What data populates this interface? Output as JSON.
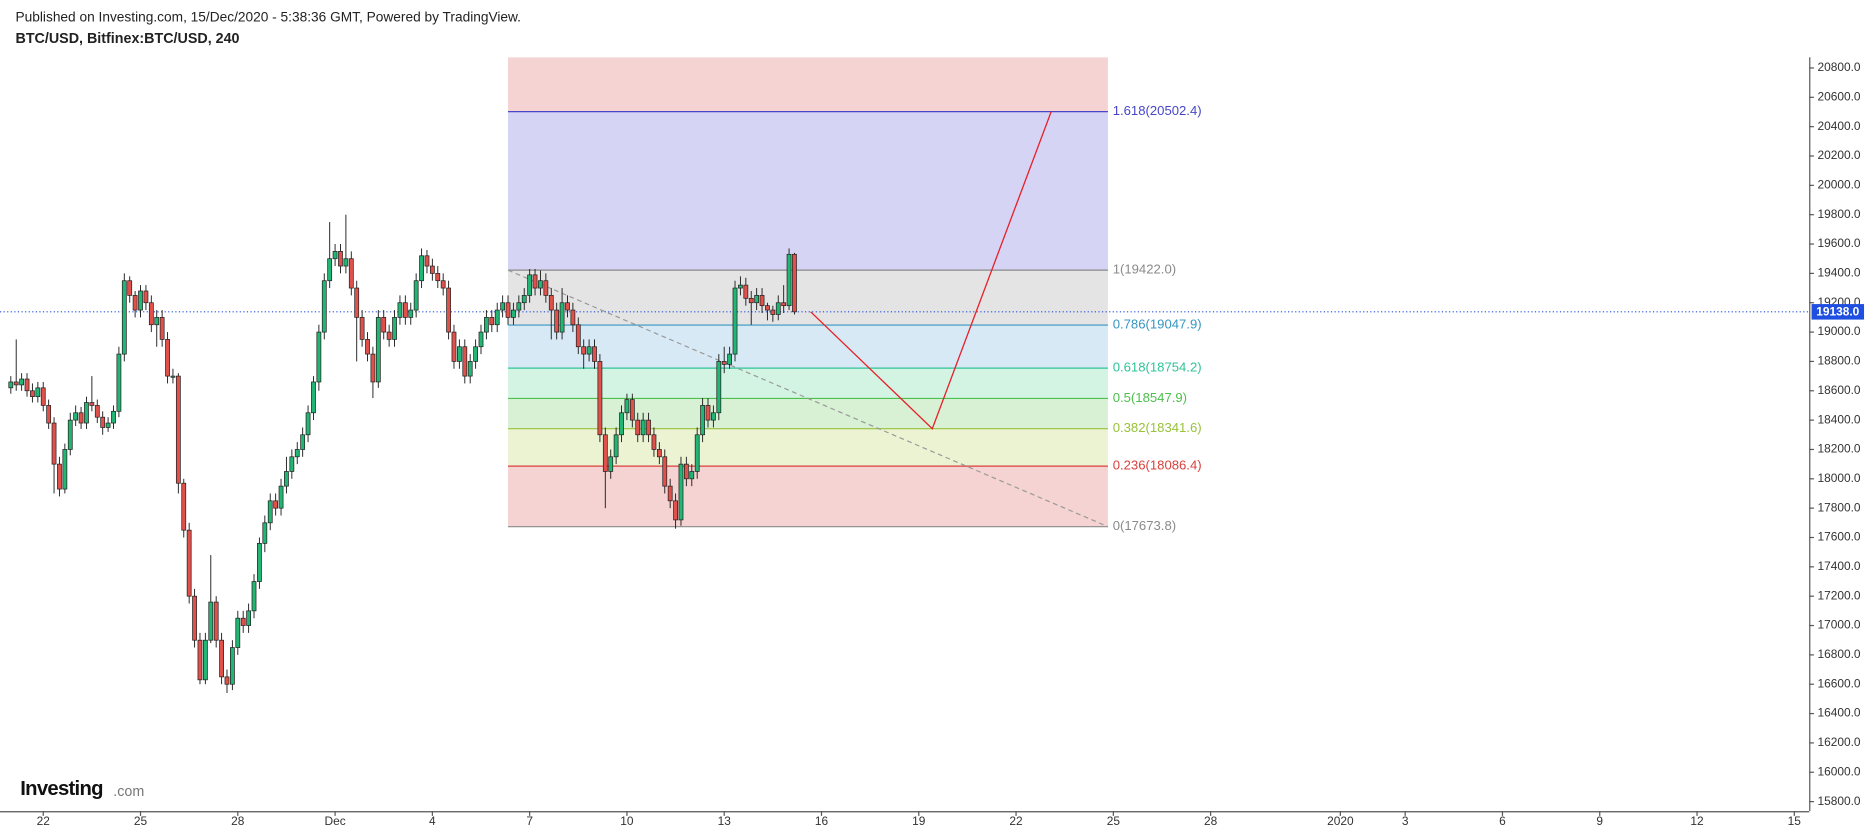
{
  "header": {
    "published": "Published on Investing.com, 15/Dec/2020 - 5:38:36 GMT, Powered by TradingView.",
    "symbol": "BTC/USD, Bitfinex:BTC/USD, 240"
  },
  "logo": {
    "brand": "Investing",
    "suffix": ".com"
  },
  "chart_data": {
    "type": "candlestick",
    "x": [
      "2020-11-21T00:00",
      "2020-11-21T04:00",
      "2020-11-21T08:00",
      "2020-11-21T12:00",
      "2020-11-21T16:00",
      "2020-11-21T20:00",
      "2020-11-22T00:00",
      "2020-11-22T04:00",
      "2020-11-22T08:00",
      "2020-11-22T12:00",
      "2020-11-22T16:00",
      "2020-11-22T20:00",
      "2020-11-23T00:00",
      "2020-11-23T04:00",
      "2020-11-23T08:00",
      "2020-11-23T12:00",
      "2020-11-23T16:00",
      "2020-11-23T20:00",
      "2020-11-24T00:00",
      "2020-11-24T04:00",
      "2020-11-24T08:00",
      "2020-11-24T12:00",
      "2020-11-24T16:00",
      "2020-11-24T20:00",
      "2020-11-25T00:00",
      "2020-11-25T04:00",
      "2020-11-25T08:00",
      "2020-11-25T12:00",
      "2020-11-25T16:00",
      "2020-11-25T20:00",
      "2020-11-26T00:00",
      "2020-11-26T04:00",
      "2020-11-26T08:00",
      "2020-11-26T12:00",
      "2020-11-26T16:00",
      "2020-11-26T20:00",
      "2020-11-27T00:00",
      "2020-11-27T04:00",
      "2020-11-27T08:00",
      "2020-11-27T12:00",
      "2020-11-27T16:00",
      "2020-11-27T20:00",
      "2020-11-28T00:00",
      "2020-11-28T04:00",
      "2020-11-28T08:00",
      "2020-11-28T12:00",
      "2020-11-28T16:00",
      "2020-11-28T20:00",
      "2020-11-29T00:00",
      "2020-11-29T04:00",
      "2020-11-29T08:00",
      "2020-11-29T12:00",
      "2020-11-29T16:00",
      "2020-11-29T20:00",
      "2020-11-30T00:00",
      "2020-11-30T04:00",
      "2020-11-30T08:00",
      "2020-11-30T12:00",
      "2020-11-30T16:00",
      "2020-11-30T20:00",
      "2020-12-01T00:00",
      "2020-12-01T04:00",
      "2020-12-01T08:00",
      "2020-12-01T12:00",
      "2020-12-01T16:00",
      "2020-12-01T20:00",
      "2020-12-02T00:00",
      "2020-12-02T04:00",
      "2020-12-02T08:00",
      "2020-12-02T12:00",
      "2020-12-02T16:00",
      "2020-12-02T20:00",
      "2020-12-03T00:00",
      "2020-12-03T04:00",
      "2020-12-03T08:00",
      "2020-12-03T12:00",
      "2020-12-03T16:00",
      "2020-12-03T20:00",
      "2020-12-04T00:00",
      "2020-12-04T04:00",
      "2020-12-04T08:00",
      "2020-12-04T12:00",
      "2020-12-04T16:00",
      "2020-12-04T20:00",
      "2020-12-05T00:00",
      "2020-12-05T04:00",
      "2020-12-05T08:00",
      "2020-12-05T12:00",
      "2020-12-05T16:00",
      "2020-12-05T20:00",
      "2020-12-06T00:00",
      "2020-12-06T04:00",
      "2020-12-06T08:00",
      "2020-12-06T12:00",
      "2020-12-06T16:00",
      "2020-12-06T20:00",
      "2020-12-07T00:00",
      "2020-12-07T04:00",
      "2020-12-07T08:00",
      "2020-12-07T12:00",
      "2020-12-07T16:00",
      "2020-12-07T20:00",
      "2020-12-08T00:00",
      "2020-12-08T04:00",
      "2020-12-08T08:00",
      "2020-12-08T12:00",
      "2020-12-08T16:00",
      "2020-12-08T20:00",
      "2020-12-09T00:00",
      "2020-12-09T04:00",
      "2020-12-09T08:00",
      "2020-12-09T12:00",
      "2020-12-09T16:00",
      "2020-12-09T20:00",
      "2020-12-10T00:00",
      "2020-12-10T04:00",
      "2020-12-10T08:00",
      "2020-12-10T12:00",
      "2020-12-10T16:00",
      "2020-12-10T20:00",
      "2020-12-11T00:00",
      "2020-12-11T04:00",
      "2020-12-11T08:00",
      "2020-12-11T12:00",
      "2020-12-11T16:00",
      "2020-12-11T20:00",
      "2020-12-12T00:00",
      "2020-12-12T04:00",
      "2020-12-12T08:00",
      "2020-12-12T12:00",
      "2020-12-12T16:00",
      "2020-12-12T20:00",
      "2020-12-13T00:00",
      "2020-12-13T04:00",
      "2020-12-13T08:00",
      "2020-12-13T12:00",
      "2020-12-13T16:00",
      "2020-12-13T20:00",
      "2020-12-14T00:00",
      "2020-12-14T04:00",
      "2020-12-14T08:00",
      "2020-12-14T12:00",
      "2020-12-14T16:00",
      "2020-12-14T20:00",
      "2020-12-15T00:00",
      "2020-12-15T04:00"
    ],
    "open": [
      18620,
      18660,
      18640,
      18680,
      18600,
      18560,
      18620,
      18500,
      18380,
      18100,
      17930,
      18200,
      18400,
      18450,
      18380,
      18520,
      18500,
      18420,
      18350,
      18380,
      18460,
      18850,
      19350,
      19250,
      19150,
      19280,
      19200,
      19050,
      19100,
      18950,
      18700,
      18700,
      17970,
      17650,
      17200,
      16900,
      16630,
      16900,
      17160,
      16900,
      16650,
      16600,
      16850,
      17050,
      17000,
      17100,
      17300,
      17560,
      17700,
      17850,
      17800,
      17950,
      18050,
      18150,
      18200,
      18300,
      18450,
      18660,
      19000,
      19350,
      19500,
      19550,
      19450,
      19500,
      19300,
      19100,
      18950,
      18850,
      18660,
      19100,
      19000,
      18950,
      19100,
      19200,
      19100,
      19150,
      19350,
      19520,
      19450,
      19400,
      19350,
      19300,
      19000,
      18800,
      18900,
      18700,
      18800,
      18900,
      19000,
      19100,
      19050,
      19150,
      19200,
      19100,
      19150,
      19200,
      19250,
      19390,
      19300,
      19350,
      19250,
      19150,
      19000,
      19200,
      19150,
      19050,
      18900,
      18850,
      18900,
      18800,
      18300,
      18050,
      18150,
      18300,
      18450,
      18540,
      18400,
      18300,
      18400,
      18300,
      18200,
      18150,
      17950,
      17850,
      17720,
      18100,
      18000,
      18050,
      18300,
      18500,
      18400,
      18450,
      18800,
      18780,
      18850,
      19300,
      19320,
      19230,
      19200,
      19250,
      19180,
      19150,
      19120,
      19200,
      19180,
      19530
    ],
    "high": [
      18700,
      18950,
      18720,
      18720,
      18650,
      18660,
      18660,
      18540,
      18420,
      18150,
      18240,
      18450,
      18500,
      18490,
      18560,
      18700,
      18540,
      18460,
      18420,
      18500,
      18900,
      19400,
      19380,
      19280,
      19320,
      19320,
      19250,
      19150,
      19150,
      19000,
      18750,
      18720,
      18000,
      17700,
      17250,
      16950,
      16950,
      17480,
      17200,
      16950,
      16700,
      16900,
      17100,
      17100,
      17150,
      17350,
      17600,
      17750,
      17900,
      17900,
      18000,
      18150,
      18200,
      18250,
      18350,
      18500,
      18700,
      19050,
      19400,
      19750,
      19600,
      19600,
      19800,
      19550,
      19350,
      19150,
      19000,
      18900,
      19150,
      19150,
      19050,
      19150,
      19250,
      19250,
      19200,
      19400,
      19570,
      19560,
      19500,
      19450,
      19400,
      19350,
      19050,
      18950,
      18950,
      18850,
      18950,
      19050,
      19150,
      19150,
      19200,
      19250,
      19250,
      19200,
      19250,
      19300,
      19430,
      19430,
      19420,
      19400,
      19300,
      19200,
      19300,
      19250,
      19200,
      19100,
      18950,
      18950,
      18950,
      18850,
      18350,
      18200,
      18350,
      18500,
      18580,
      18580,
      18450,
      18450,
      18450,
      18350,
      18250,
      18200,
      18000,
      17900,
      18150,
      18150,
      18100,
      18350,
      18550,
      18550,
      18500,
      18850,
      18900,
      18900,
      19350,
      19380,
      19370,
      19280,
      19300,
      19300,
      19200,
      19180,
      19250,
      19320,
      19570,
      19540
    ],
    "low": [
      18580,
      18600,
      18600,
      18560,
      18520,
      18520,
      18460,
      18340,
      17900,
      17880,
      17900,
      18160,
      18360,
      18340,
      18340,
      18460,
      18380,
      18300,
      18320,
      18340,
      18420,
      18800,
      19200,
      19100,
      19100,
      19150,
      19000,
      18900,
      18900,
      18650,
      18650,
      17900,
      17600,
      17150,
      16850,
      16600,
      16600,
      16880,
      16850,
      16600,
      16540,
      16560,
      16800,
      16950,
      16950,
      17050,
      17250,
      17500,
      17650,
      17750,
      17750,
      17900,
      18000,
      18100,
      18150,
      18250,
      18400,
      18600,
      18950,
      19300,
      19450,
      19400,
      19400,
      19250,
      18800,
      18900,
      18800,
      18550,
      18620,
      18950,
      18900,
      18900,
      19050,
      19050,
      19050,
      19100,
      19300,
      19400,
      19350,
      19300,
      19250,
      18950,
      18750,
      18750,
      18650,
      18650,
      18750,
      18850,
      18950,
      19000,
      19000,
      19100,
      19050,
      19050,
      19100,
      19150,
      19200,
      19250,
      19250,
      19200,
      18950,
      18950,
      18950,
      19100,
      19000,
      18850,
      18750,
      18800,
      18750,
      18250,
      17800,
      18000,
      18100,
      18250,
      18400,
      18350,
      18250,
      18250,
      18250,
      18150,
      18100,
      17900,
      17800,
      17660,
      17680,
      17950,
      17950,
      18000,
      18250,
      18350,
      18350,
      18400,
      18720,
      18750,
      18800,
      19250,
      19180,
      19050,
      19150,
      19130,
      19080,
      19070,
      19080,
      19130,
      19150,
      19120
    ],
    "close": [
      18660,
      18640,
      18680,
      18600,
      18560,
      18620,
      18500,
      18380,
      18100,
      17930,
      18200,
      18400,
      18450,
      18380,
      18520,
      18500,
      18420,
      18350,
      18380,
      18460,
      18850,
      19350,
      19250,
      19150,
      19280,
      19200,
      19050,
      19100,
      18950,
      18700,
      18700,
      17970,
      17650,
      17200,
      16900,
      16630,
      16900,
      17160,
      16900,
      16650,
      16600,
      16850,
      17050,
      17000,
      17100,
      17300,
      17560,
      17700,
      17850,
      17800,
      17950,
      18050,
      18150,
      18200,
      18300,
      18450,
      18660,
      19000,
      19350,
      19500,
      19550,
      19450,
      19500,
      19300,
      19100,
      18950,
      18850,
      18660,
      19100,
      19000,
      18950,
      19100,
      19200,
      19100,
      19150,
      19350,
      19520,
      19450,
      19400,
      19350,
      19300,
      19000,
      18800,
      18900,
      18700,
      18800,
      18900,
      19000,
      19100,
      19050,
      19150,
      19200,
      19100,
      19150,
      19200,
      19250,
      19390,
      19300,
      19350,
      19250,
      19150,
      19000,
      19200,
      19150,
      19050,
      18900,
      18850,
      18900,
      18800,
      18300,
      18050,
      18150,
      18300,
      18450,
      18540,
      18400,
      18300,
      18400,
      18300,
      18200,
      18150,
      17950,
      17850,
      17720,
      18100,
      18000,
      18050,
      18300,
      18500,
      18400,
      18450,
      18800,
      18780,
      18850,
      19300,
      19320,
      19230,
      19200,
      19250,
      19180,
      19150,
      19120,
      19200,
      19180,
      19530,
      19138
    ],
    "up_color": "#22b573",
    "down_color": "#e0514b",
    "xlim": [
      "2020-11-20T16:00",
      "2021-01-15T11:00"
    ],
    "ylim": [
      15735,
      20873
    ],
    "xticks": [
      {
        "value": "2020-11-22",
        "label": "22"
      },
      {
        "value": "2020-11-25",
        "label": "25"
      },
      {
        "value": "2020-11-28",
        "label": "28"
      },
      {
        "value": "2020-12-01",
        "label": "Dec"
      },
      {
        "value": "2020-12-04",
        "label": "4"
      },
      {
        "value": "2020-12-07",
        "label": "7"
      },
      {
        "value": "2020-12-10",
        "label": "10"
      },
      {
        "value": "2020-12-13",
        "label": "13"
      },
      {
        "value": "2020-12-16",
        "label": "16"
      },
      {
        "value": "2020-12-19",
        "label": "19"
      },
      {
        "value": "2020-12-22",
        "label": "22"
      },
      {
        "value": "2020-12-25",
        "label": "25"
      },
      {
        "value": "2020-12-28",
        "label": "28"
      },
      {
        "value": "2021-01-01",
        "label": "2020"
      },
      {
        "value": "2021-01-03",
        "label": "3"
      },
      {
        "value": "2021-01-06",
        "label": "6"
      },
      {
        "value": "2021-01-09",
        "label": "9"
      },
      {
        "value": "2021-01-12",
        "label": "12"
      },
      {
        "value": "2021-01-15",
        "label": "15"
      }
    ],
    "yticks": [
      {
        "value": 15800,
        "label": "15800.0"
      },
      {
        "value": 16000,
        "label": "16000.0"
      },
      {
        "value": 16200,
        "label": "16200.0"
      },
      {
        "value": 16400,
        "label": "16400.0"
      },
      {
        "value": 16600,
        "label": "16600.0"
      },
      {
        "value": 16800,
        "label": "16800.0"
      },
      {
        "value": 17000,
        "label": "17000.0"
      },
      {
        "value": 17200,
        "label": "17200.0"
      },
      {
        "value": 17400,
        "label": "17400.0"
      },
      {
        "value": 17600,
        "label": "17600.0"
      },
      {
        "value": 17800,
        "label": "17800.0"
      },
      {
        "value": 18000,
        "label": "18000.0"
      },
      {
        "value": 18200,
        "label": "18200.0"
      },
      {
        "value": 18400,
        "label": "18400.0"
      },
      {
        "value": 18600,
        "label": "18600.0"
      },
      {
        "value": 18800,
        "label": "18800.0"
      },
      {
        "value": 19000,
        "label": "19000.0"
      },
      {
        "value": 19200,
        "label": "19200.0"
      },
      {
        "value": 19400,
        "label": "19400.0"
      },
      {
        "value": 19600,
        "label": "19600.0"
      },
      {
        "value": 19800,
        "label": "19800.0"
      },
      {
        "value": 20000,
        "label": "20000.0"
      },
      {
        "value": 20200,
        "label": "20200.0"
      },
      {
        "value": 20400,
        "label": "20400.0"
      },
      {
        "value": 20600,
        "label": "20600.0"
      },
      {
        "value": 20800,
        "label": "20800.0"
      }
    ],
    "last_price": {
      "value": 19138,
      "label": "19138.0",
      "color": "#1f4fe0"
    },
    "fibonacci": {
      "start": "2020-12-06T08:00",
      "end": "2020-12-24T20:00",
      "levels": [
        {
          "price": 17673.8,
          "label": "0(17673.8)",
          "color": "#8a8a8a",
          "band": "#f5d3d3"
        },
        {
          "price": 18086.4,
          "label": "0.236(18086.4)",
          "color": "#d9413c",
          "band": "#ecf3d2"
        },
        {
          "price": 18341.6,
          "label": "0.382(18341.6)",
          "color": "#98c23a",
          "band": "#d8f1d4"
        },
        {
          "price": 18547.9,
          "label": "0.5(18547.9)",
          "color": "#4cbf4c",
          "band": "#d3f4e3"
        },
        {
          "price": 18754.2,
          "label": "0.618(18754.2)",
          "color": "#2fc497",
          "band": "#d7e9f5"
        },
        {
          "price": 19047.9,
          "label": "0.786(19047.9)",
          "color": "#3796c2",
          "band": "#e4e4e4"
        },
        {
          "price": 19422.0,
          "label": "1(19422.0)",
          "color": "#8a8a8a",
          "band": "#d6d4f4"
        },
        {
          "price": 20502.4,
          "label": "1.618(20502.4)",
          "color": "#4646c8",
          "band": "#f5d3d3"
        }
      ],
      "trend": {
        "x": [
          "2020-12-06T08:00",
          "2020-12-24T20:00"
        ],
        "values": [
          19422.0,
          17673.8
        ],
        "color": "#999999"
      }
    },
    "projection": {
      "x": [
        "2020-12-15T16:00",
        "2020-12-19T10:00",
        "2020-12-23T02:00"
      ],
      "values": [
        19138,
        18341.6,
        20502.4
      ],
      "color": "#e8202a"
    }
  }
}
